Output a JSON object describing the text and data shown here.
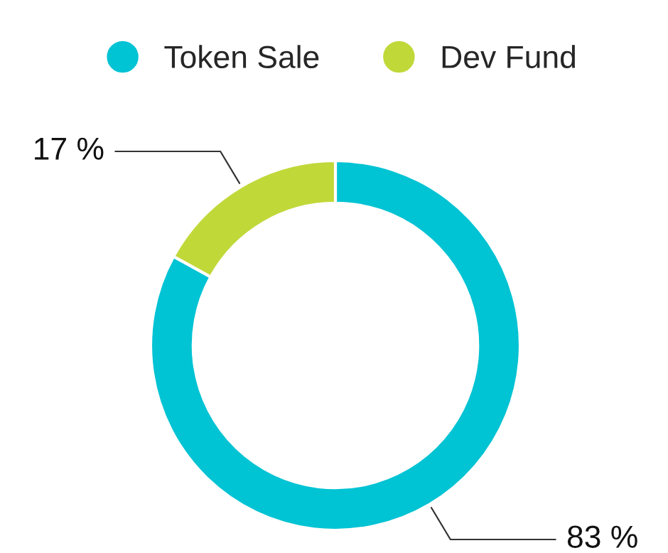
{
  "chart_data": {
    "type": "donut",
    "categories": [
      "Token Sale",
      "Dev Fund"
    ],
    "values": [
      83,
      17
    ],
    "colors": [
      "#00c3d3",
      "#c1d839"
    ],
    "legend": "top",
    "value_labels": [
      "83 %",
      "17 %"
    ]
  }
}
